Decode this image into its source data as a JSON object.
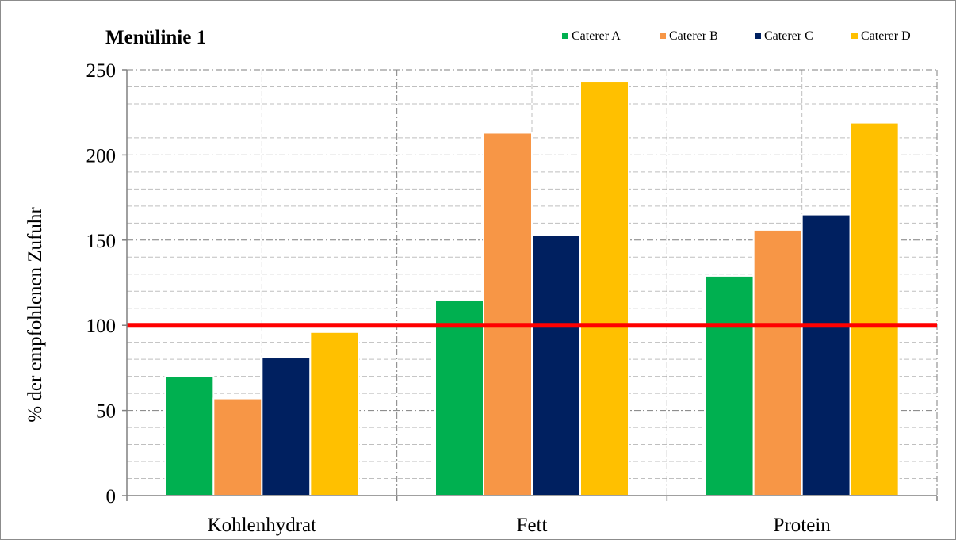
{
  "chart_data": {
    "type": "bar",
    "title": "Menülinie 1",
    "ylabel": "% der empfohlenen Zufuhr",
    "xlabel": "",
    "categories": [
      "Kohlenhydrat",
      "Fett",
      "Protein"
    ],
    "series": [
      {
        "name": "Caterer A",
        "color": "#00b050",
        "values": [
          70,
          115,
          129
        ]
      },
      {
        "name": "Caterer B",
        "color": "#f79646",
        "values": [
          57,
          213,
          156
        ]
      },
      {
        "name": "Caterer C",
        "color": "#002060",
        "values": [
          81,
          153,
          165
        ]
      },
      {
        "name": "Caterer D",
        "color": "#ffc000",
        "values": [
          96,
          243,
          219
        ]
      }
    ],
    "ylim": [
      0,
      250
    ],
    "yticks": [
      "0",
      "50",
      "100",
      "150",
      "200",
      "250"
    ],
    "reference_line": {
      "value": 100,
      "color": "#ff0000"
    },
    "grid": true,
    "legend_position": "top-right"
  }
}
